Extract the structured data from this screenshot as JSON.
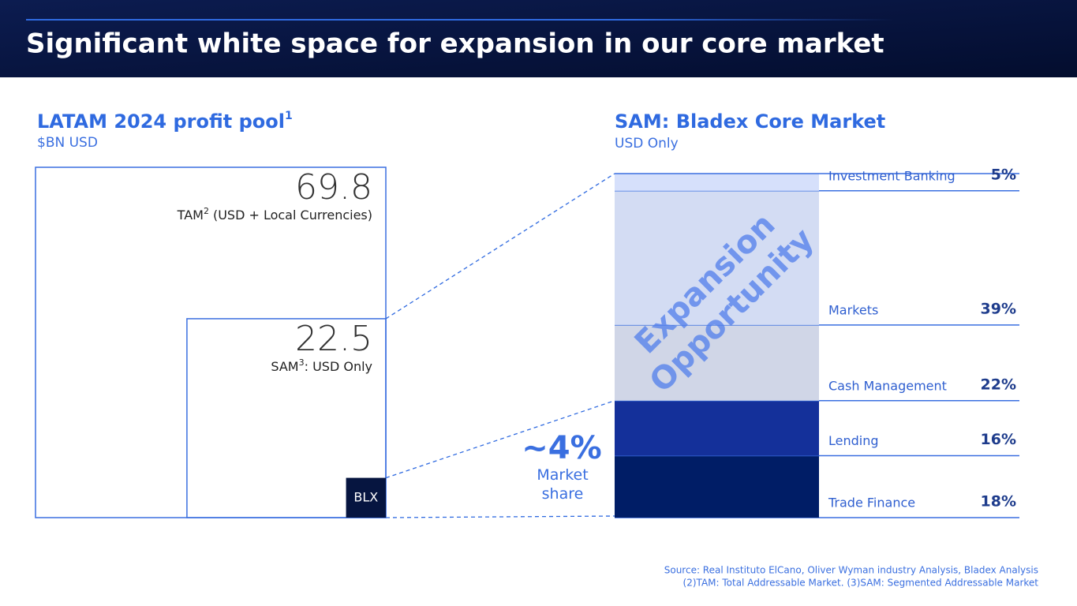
{
  "header": {
    "title": "Significant white space for expansion in our core market"
  },
  "chart_data": [
    {
      "type": "nested-square",
      "title": "LATAM 2024 profit pool",
      "title_note": "1",
      "subtitle": "$BN USD",
      "items": [
        {
          "name": "TAM",
          "note": "2",
          "label": "(USD + Local Currencies)",
          "value": 69.8,
          "color": "#3a6fe0"
        },
        {
          "name": "SAM",
          "note": "3",
          "label": ": USD Only",
          "value": 22.5,
          "color": "#3a6fe0"
        }
      ],
      "share": {
        "name": "BLX",
        "value": 4,
        "value_label": "~4%",
        "label": "Market share",
        "color": "#061540"
      }
    },
    {
      "type": "stacked-bar",
      "title": "SAM: Bladex Core Market",
      "subtitle": "USD Only",
      "categories": [
        "Trade Finance",
        "Lending",
        "Cash Management",
        "Markets",
        "Investment Banking"
      ],
      "values": [
        18,
        16,
        22,
        39,
        5
      ],
      "value_labels": [
        "18%",
        "16%",
        "22%",
        "39%",
        "5%"
      ],
      "colors": [
        "#001d66",
        "#14309a",
        "#d0d6e7",
        "#d3dcf3",
        "#d6e0fb"
      ],
      "annotation": [
        "Expansion",
        "Opportunity"
      ]
    }
  ],
  "footer": {
    "source": "Source: Real Instituto ElCano, Oliver Wyman industry Analysis, Bladex Analysis",
    "notes": "(2)TAM: Total Addressable Market. (3)SAM: Segmented Addressable Market"
  }
}
